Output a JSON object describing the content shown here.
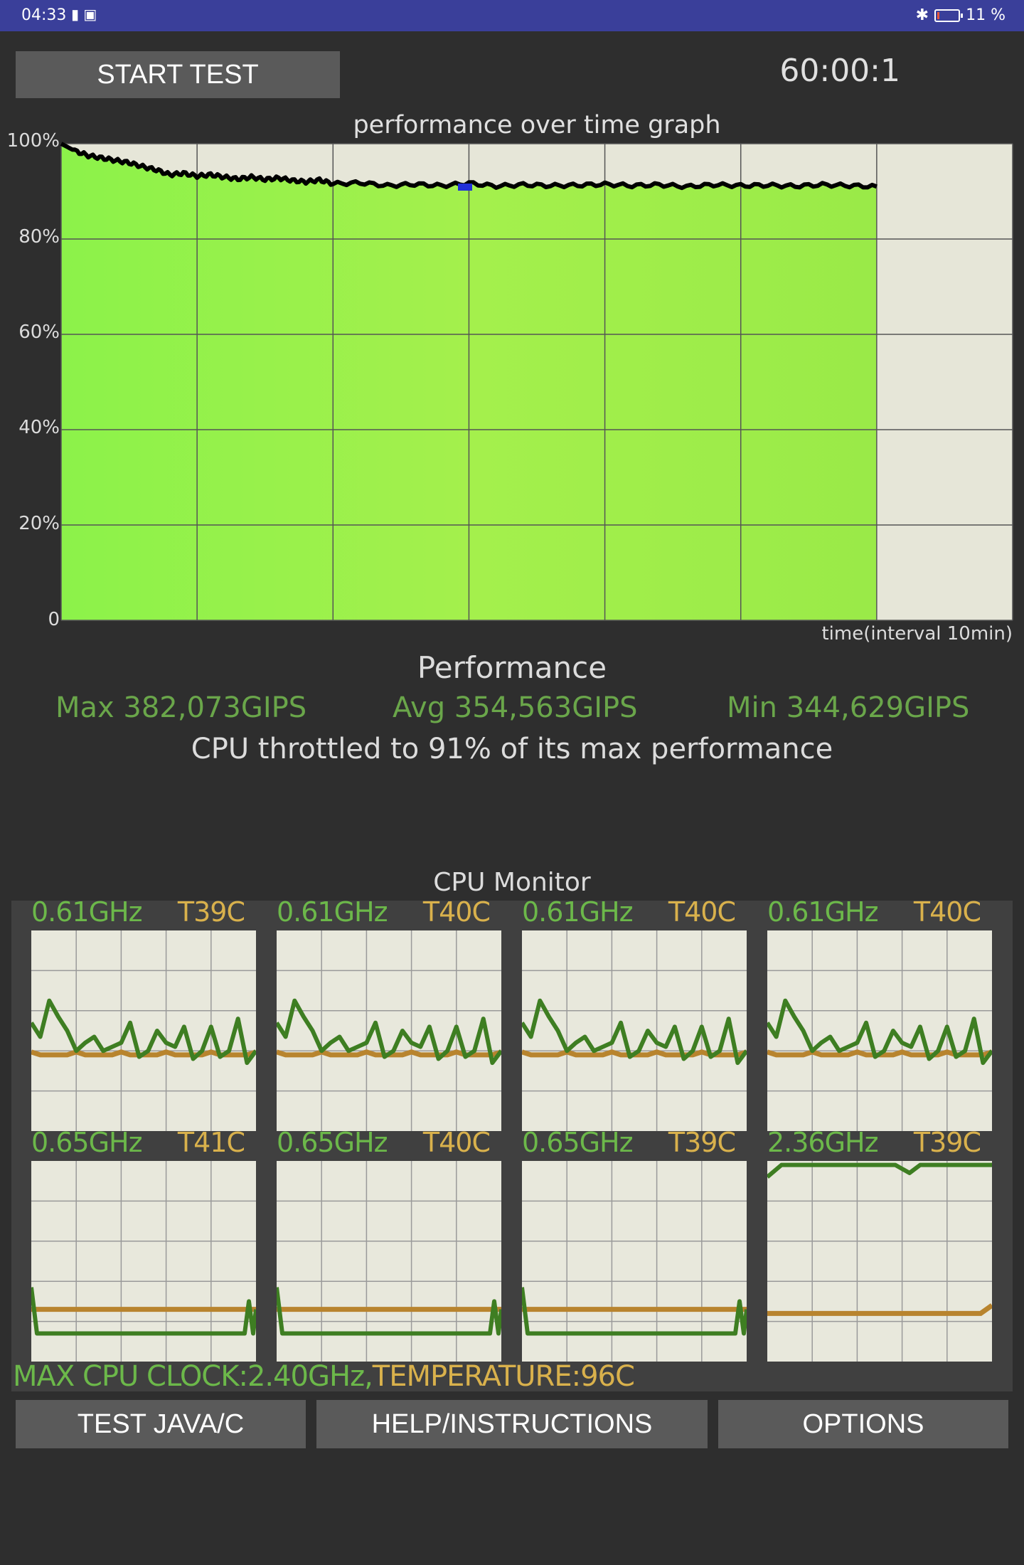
{
  "status_bar": {
    "time": "04:33",
    "battery": "11 %",
    "battery_level": 0.11
  },
  "header": {
    "start_label": "START TEST",
    "timer": "60:00:1"
  },
  "graph": {
    "title": "performance over time graph",
    "y_ticks": [
      "100%",
      "80%",
      "60%",
      "40%",
      "20%",
      "0"
    ],
    "x_label": "time(interval 10min)"
  },
  "chart_data": {
    "type": "area",
    "title": "performance over time graph",
    "xlabel": "time(interval 10min)",
    "ylabel": "",
    "ylim": [
      0,
      100
    ],
    "xlim": [
      0,
      70
    ],
    "x_ticks_interval_min": 10,
    "series": [
      {
        "x": [
          0,
          1,
          2,
          3,
          4,
          5,
          6,
          7,
          8,
          9,
          10,
          11,
          12,
          13,
          14,
          15,
          16,
          17,
          18,
          19,
          20,
          22,
          24,
          26,
          28,
          30,
          32,
          34,
          36,
          38,
          40,
          42,
          44,
          46,
          48,
          50,
          52,
          54,
          56,
          58,
          60
        ],
        "values": [
          100,
          98.5,
          97.5,
          97,
          96.5,
          96,
          95.2,
          94.5,
          93.5,
          93.8,
          93.2,
          93.5,
          93,
          92.6,
          93,
          92.5,
          92.8,
          92.3,
          92,
          92.4,
          91.6,
          91.8,
          91.2,
          91.5,
          91.2,
          91.7,
          91.1,
          91.4,
          91.2,
          91.3,
          91.5,
          91.2,
          91.4,
          91,
          91.4,
          91.2,
          91.3,
          91.1,
          91.4,
          91.2,
          91
        ]
      }
    ],
    "grid": true
  },
  "performance": {
    "title": "Performance",
    "max": "Max 382,073GIPS",
    "avg": "Avg 354,563GIPS",
    "min": "Min 344,629GIPS",
    "throttle": "CPU throttled to 91% of its max performance"
  },
  "monitor": {
    "title": "CPU Monitor",
    "cores": [
      {
        "freq": "0.61GHz",
        "temp": "T39C"
      },
      {
        "freq": "0.61GHz",
        "temp": "T40C"
      },
      {
        "freq": "0.61GHz",
        "temp": "T40C"
      },
      {
        "freq": "0.61GHz",
        "temp": "T40C"
      },
      {
        "freq": "0.65GHz",
        "temp": "T41C"
      },
      {
        "freq": "0.65GHz",
        "temp": "T40C"
      },
      {
        "freq": "0.65GHz",
        "temp": "T39C"
      },
      {
        "freq": "2.36GHz",
        "temp": "T39C"
      }
    ],
    "max_clock": "MAX CPU CLOCK:2.40GHz,",
    "max_temp": "TEMPERATURE:96C"
  },
  "buttons": {
    "test": "TEST JAVA/C",
    "help": "HELP/INSTRUCTIONS",
    "options": "OPTIONS"
  },
  "colors": {
    "graph_fill": "#9bf04e",
    "graph_bg": "#e6e6d8",
    "core_freq": "#6cb84a",
    "core_temp": "#d9b14c",
    "freq_line": "#3e7e22",
    "temp_line": "#b8842e"
  }
}
